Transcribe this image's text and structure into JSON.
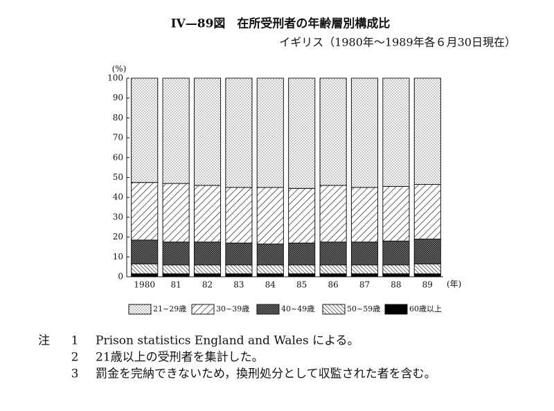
{
  "chart_data": {
    "type": "stacked_bar",
    "title": "IV—89図　在所受刑者の年齢層別構成比",
    "subtitle": "イギリス（1980年～1989年各６月30日現在）",
    "y_label": "(%)",
    "x_label": "(年)",
    "categories": [
      "1980",
      "81",
      "82",
      "83",
      "84",
      "85",
      "86",
      "87",
      "88",
      "89"
    ],
    "series": [
      {
        "name": "21~29歳",
        "color": "#ffffff",
        "pattern": "dots",
        "values": [
          52.5,
          53,
          54,
          55,
          55,
          55.5,
          54,
          55,
          54.5,
          53.5
        ]
      },
      {
        "name": "30~39歳",
        "color": "#ffffff",
        "pattern": "backslash",
        "values": [
          29,
          29.5,
          28.5,
          28,
          28.5,
          27.5,
          28.5,
          27.5,
          27.5,
          27.5
        ]
      },
      {
        "name": "40~49歳",
        "color": "#555555",
        "pattern": "crosshatch",
        "values": [
          12,
          11.5,
          11.5,
          11,
          10.5,
          11,
          11.5,
          11.5,
          12,
          12.5
        ]
      },
      {
        "name": "50~59歳",
        "color": "#ffffff",
        "pattern": "slash",
        "values": [
          5,
          4.5,
          4.5,
          4.5,
          4.5,
          4.5,
          4.5,
          4.5,
          4.5,
          5
        ]
      },
      {
        "name": "60歳以上",
        "color": "#000000",
        "pattern": "solid",
        "values": [
          1.5,
          1.5,
          1.5,
          1.5,
          1.5,
          1.5,
          1.5,
          1.5,
          1.5,
          1.5
        ]
      }
    ],
    "ylim": [
      0,
      100
    ],
    "yticks": [
      0,
      10,
      20,
      30,
      40,
      50,
      60,
      70,
      80,
      90,
      100
    ],
    "grid": false,
    "legend": "bottom"
  },
  "notes": {
    "label": "注",
    "items": [
      {
        "number": 1,
        "text": "Prison statistics England and Wales による。"
      },
      {
        "number": 2,
        "text": "21歳以上の受刑者を集計した。"
      },
      {
        "number": 3,
        "text": "罰金を完納できないため，換刑処分として収監された者を含む。"
      }
    ]
  }
}
